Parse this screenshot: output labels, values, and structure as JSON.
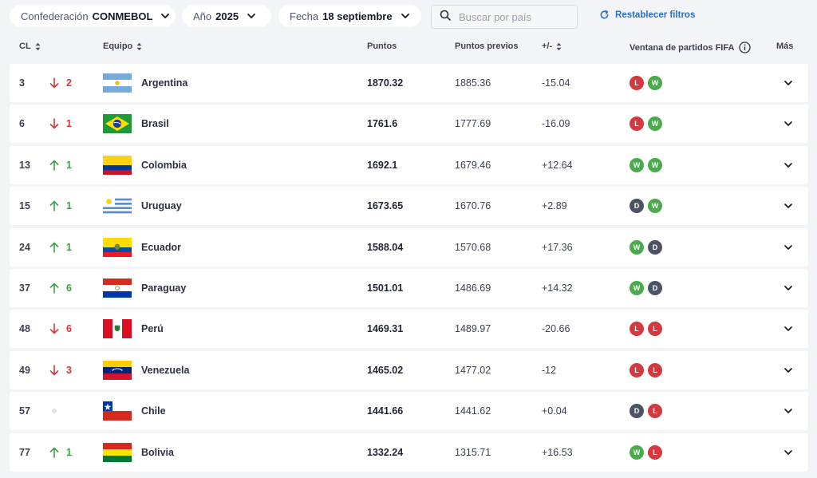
{
  "filters": {
    "confederation_label": "Confederación",
    "confederation_value": "CONMEBOL",
    "year_label": "Año",
    "year_value": "2025",
    "date_label": "Fecha",
    "date_value": "18 septiembre",
    "search_placeholder": "Buscar por país",
    "reset_label": "Restablecer filtros"
  },
  "table": {
    "headers": {
      "rank": "CL",
      "team": "Equipo",
      "points": "Puntos",
      "previous_points": "Puntos previos",
      "change": "+/-",
      "match_window": "Ventana de partidos FIFA",
      "more": "Más"
    },
    "rows": [
      {
        "rank": "3",
        "move": "down",
        "move_value": "2",
        "team": "Argentina",
        "flag": "argentina-flag",
        "points": "1870.32",
        "previous": "1885.36",
        "diff": "-15.04",
        "results": [
          "L",
          "W"
        ]
      },
      {
        "rank": "6",
        "move": "down",
        "move_value": "1",
        "team": "Brasil",
        "flag": "brazil-flag",
        "points": "1761.6",
        "previous": "1777.69",
        "diff": "-16.09",
        "results": [
          "L",
          "W"
        ]
      },
      {
        "rank": "13",
        "move": "up",
        "move_value": "1",
        "team": "Colombia",
        "flag": "colombia-flag",
        "points": "1692.1",
        "previous": "1679.46",
        "diff": "+12.64",
        "results": [
          "W",
          "W"
        ]
      },
      {
        "rank": "15",
        "move": "up",
        "move_value": "1",
        "team": "Uruguay",
        "flag": "uruguay-flag",
        "points": "1673.65",
        "previous": "1670.76",
        "diff": "+2.89",
        "results": [
          "D",
          "W"
        ]
      },
      {
        "rank": "24",
        "move": "up",
        "move_value": "1",
        "team": "Ecuador",
        "flag": "ecuador-flag",
        "points": "1588.04",
        "previous": "1570.68",
        "diff": "+17.36",
        "results": [
          "W",
          "D"
        ]
      },
      {
        "rank": "37",
        "move": "up",
        "move_value": "6",
        "team": "Paraguay",
        "flag": "paraguay-flag",
        "points": "1501.01",
        "previous": "1486.69",
        "diff": "+14.32",
        "results": [
          "W",
          "D"
        ]
      },
      {
        "rank": "48",
        "move": "down",
        "move_value": "6",
        "team": "Perú",
        "flag": "peru-flag",
        "points": "1469.31",
        "previous": "1489.97",
        "diff": "-20.66",
        "results": [
          "L",
          "L"
        ]
      },
      {
        "rank": "49",
        "move": "down",
        "move_value": "3",
        "team": "Venezuela",
        "flag": "venezuela-flag",
        "points": "1465.02",
        "previous": "1477.02",
        "diff": "-12",
        "results": [
          "L",
          "L"
        ]
      },
      {
        "rank": "57",
        "move": "same",
        "move_value": "",
        "team": "Chile",
        "flag": "chile-flag",
        "points": "1441.66",
        "previous": "1441.62",
        "diff": "+0.04",
        "results": [
          "D",
          "L"
        ]
      },
      {
        "rank": "77",
        "move": "up",
        "move_value": "1",
        "team": "Bolivia",
        "flag": "bolivia-flag",
        "points": "1332.24",
        "previous": "1315.71",
        "diff": "+16.53",
        "results": [
          "W",
          "L"
        ]
      }
    ]
  },
  "colors": {
    "up": "#3aa046",
    "down": "#d7373f",
    "win": "#4aaa4c",
    "loss": "#d23a40",
    "draw": "#4c5364",
    "link": "#2a6fc9"
  }
}
